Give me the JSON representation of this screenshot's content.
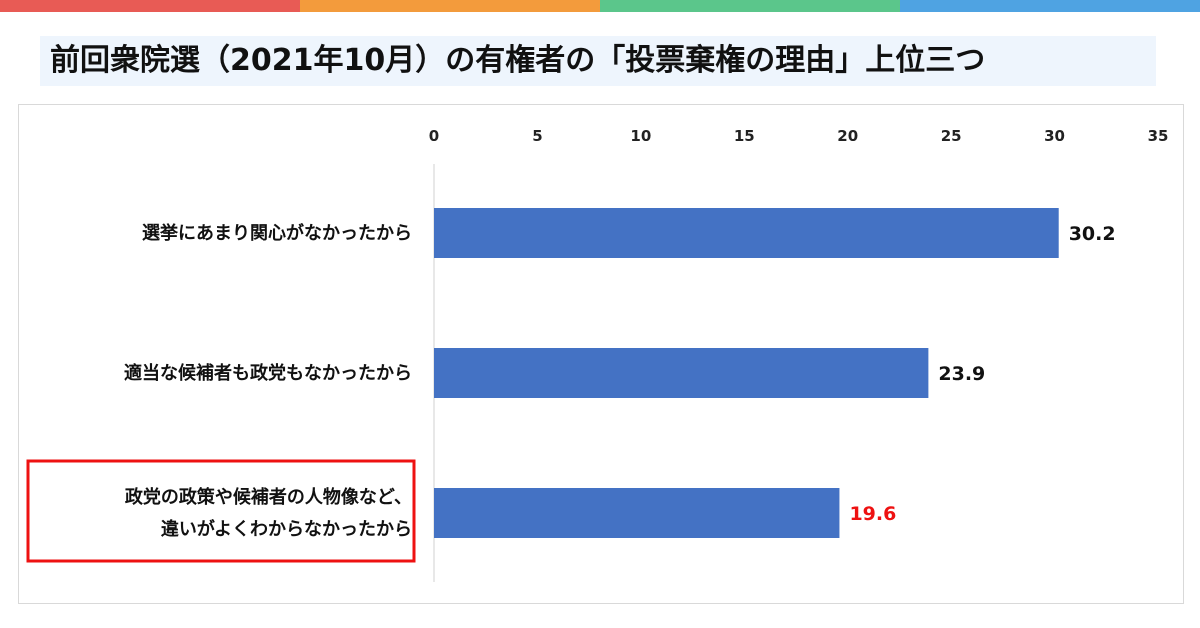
{
  "title": "前回衆院選（2021年10月）の有権者の「投票棄権の理由」上位三つ",
  "top_bar_colors": [
    "#e85b55",
    "#f39b3c",
    "#5bc68b",
    "#4fa3e2"
  ],
  "bar_color": "#4472c4",
  "highlight_color": "#ee1111",
  "chart_data": {
    "type": "bar",
    "orientation": "horizontal",
    "xlim": [
      0,
      35
    ],
    "xticks": [
      "0",
      "5",
      "10",
      "15",
      "20",
      "25",
      "30",
      "35"
    ],
    "axis_position": "top",
    "grid": false,
    "categories": [
      [
        "選挙にあまり関心がなかったから"
      ],
      [
        "適当な候補者も政党もなかったから"
      ],
      [
        "政党の政策や候補者の人物像など、",
        "違いがよくわからなかったから"
      ]
    ],
    "values": [
      30.2,
      23.9,
      19.6
    ],
    "value_labels": [
      "30.2",
      "23.9",
      "19.6"
    ],
    "highlighted_index": 2
  }
}
